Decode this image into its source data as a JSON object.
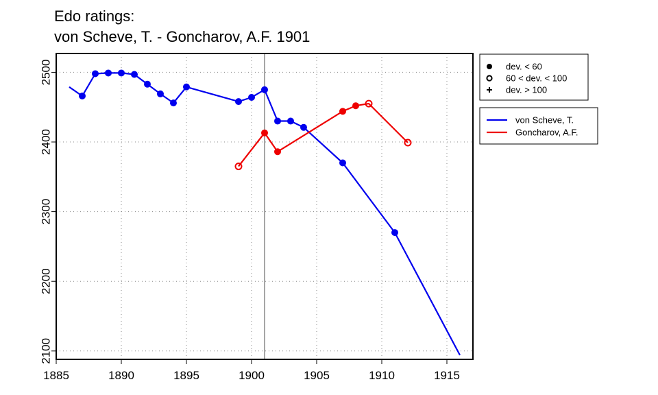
{
  "chart_data": {
    "type": "line",
    "title_lines": [
      "Edo ratings:",
      "von Scheve, T. - Goncharov, A.F. 1901"
    ],
    "xlabel": "",
    "ylabel": "",
    "xlim": [
      1885,
      1917
    ],
    "ylim": [
      2088,
      2527
    ],
    "x_ticks": [
      1885,
      1890,
      1895,
      1900,
      1905,
      1910,
      1915
    ],
    "y_ticks": [
      2100,
      2200,
      2300,
      2400,
      2500
    ],
    "grid": true,
    "vertical_marker_x": 1901,
    "colors": {
      "series_a": "#0000ee",
      "series_b": "#ee0000",
      "marker_line": "#888888"
    },
    "deviation_legend": {
      "position": "top-right",
      "entries": [
        {
          "symbol": "filled-circle",
          "label": "dev. < 60"
        },
        {
          "symbol": "open-circle",
          "label": "60 < dev. < 100"
        },
        {
          "symbol": "plus",
          "label": "dev. > 100"
        }
      ]
    },
    "series_legend": {
      "position": "right",
      "entries": [
        {
          "label": "von Scheve, T.",
          "color": "#0000ee"
        },
        {
          "label": "Goncharov, A.F.",
          "color": "#ee0000"
        }
      ]
    },
    "series": [
      {
        "name": "von Scheve, T.",
        "color": "#0000ee",
        "points": [
          {
            "x": 1886,
            "y": 2479,
            "marker": "none"
          },
          {
            "x": 1887,
            "y": 2466,
            "marker": "filled-circle"
          },
          {
            "x": 1888,
            "y": 2498,
            "marker": "filled-circle"
          },
          {
            "x": 1889,
            "y": 2499,
            "marker": "filled-circle"
          },
          {
            "x": 1890,
            "y": 2499,
            "marker": "filled-circle"
          },
          {
            "x": 1891,
            "y": 2497,
            "marker": "filled-circle"
          },
          {
            "x": 1892,
            "y": 2483,
            "marker": "filled-circle"
          },
          {
            "x": 1893,
            "y": 2469,
            "marker": "filled-circle"
          },
          {
            "x": 1894,
            "y": 2456,
            "marker": "filled-circle"
          },
          {
            "x": 1895,
            "y": 2479,
            "marker": "filled-circle"
          },
          {
            "x": 1899,
            "y": 2458,
            "marker": "filled-circle"
          },
          {
            "x": 1900,
            "y": 2464,
            "marker": "filled-circle"
          },
          {
            "x": 1901,
            "y": 2475,
            "marker": "filled-circle"
          },
          {
            "x": 1902,
            "y": 2430,
            "marker": "filled-circle"
          },
          {
            "x": 1903,
            "y": 2430,
            "marker": "filled-circle"
          },
          {
            "x": 1904,
            "y": 2421,
            "marker": "filled-circle"
          },
          {
            "x": 1907,
            "y": 2370,
            "marker": "filled-circle"
          },
          {
            "x": 1911,
            "y": 2270,
            "marker": "filled-circle"
          },
          {
            "x": 1916,
            "y": 2094,
            "marker": "none"
          }
        ]
      },
      {
        "name": "Goncharov, A.F.",
        "color": "#ee0000",
        "points": [
          {
            "x": 1899,
            "y": 2365,
            "marker": "open-circle"
          },
          {
            "x": 1901,
            "y": 2413,
            "marker": "filled-circle"
          },
          {
            "x": 1902,
            "y": 2386,
            "marker": "filled-circle"
          },
          {
            "x": 1907,
            "y": 2444,
            "marker": "filled-circle"
          },
          {
            "x": 1908,
            "y": 2452,
            "marker": "filled-circle"
          },
          {
            "x": 1909,
            "y": 2455,
            "marker": "open-circle"
          },
          {
            "x": 1912,
            "y": 2399,
            "marker": "open-circle"
          }
        ]
      }
    ]
  }
}
